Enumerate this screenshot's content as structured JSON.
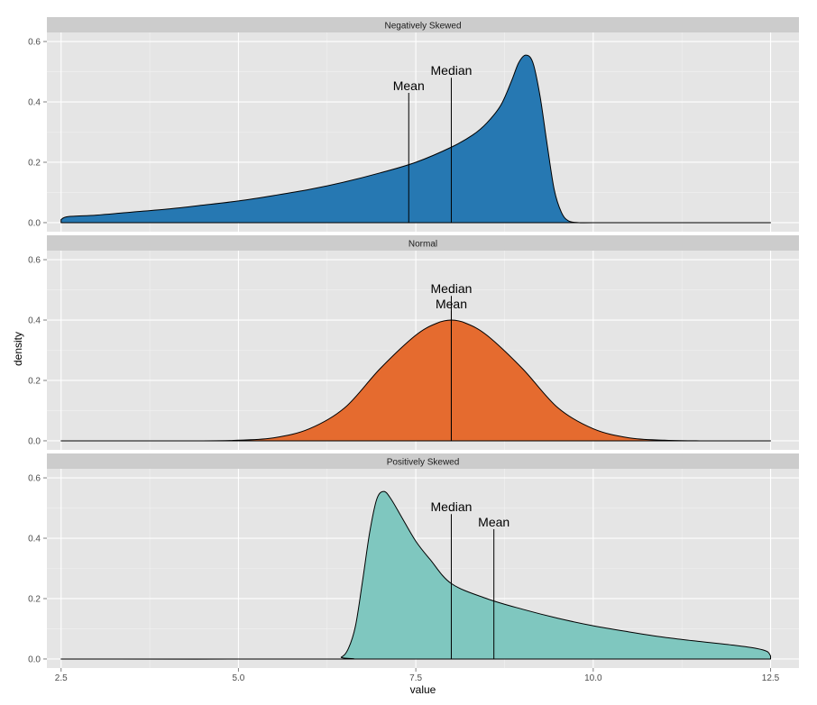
{
  "chart_data": {
    "type": "area",
    "xlabel": "value",
    "ylabel": "density",
    "xlim": [
      2.3,
      12.9
    ],
    "ylim": [
      -0.03,
      0.63
    ],
    "x_ticks": [
      2.5,
      5.0,
      7.5,
      10.0,
      12.5
    ],
    "x_tick_labels": [
      "2.5",
      "5.0",
      "7.5",
      "10.0",
      "12.5"
    ],
    "y_ticks": [
      0.0,
      0.2,
      0.4,
      0.6
    ],
    "y_tick_labels": [
      "0.0",
      "0.2",
      "0.4",
      "0.6"
    ],
    "grid": true,
    "panels": [
      {
        "title": "Negatively Skewed",
        "fill": "#2678b2",
        "series": {
          "x": [
            2.5,
            2.6,
            3.0,
            3.5,
            4.0,
            4.5,
            5.0,
            5.5,
            6.0,
            6.5,
            7.0,
            7.5,
            8.0,
            8.3,
            8.5,
            8.7,
            8.85,
            8.95,
            9.05,
            9.15,
            9.25,
            9.35,
            9.45,
            9.55,
            9.65,
            9.8,
            10.0,
            11.0,
            12.5
          ],
          "y": [
            0.01,
            0.02,
            0.025,
            0.035,
            0.045,
            0.058,
            0.072,
            0.09,
            0.11,
            0.135,
            0.165,
            0.2,
            0.25,
            0.29,
            0.33,
            0.39,
            0.47,
            0.53,
            0.555,
            0.53,
            0.42,
            0.26,
            0.11,
            0.035,
            0.006,
            0.0,
            0.0,
            0.0,
            0.0
          ]
        },
        "annotations": [
          {
            "label": "Mean",
            "x": 7.4,
            "y": 0.43
          },
          {
            "label": "Median",
            "x": 8.0,
            "y": 0.48
          }
        ]
      },
      {
        "title": "Normal",
        "fill": "#e56b2f",
        "series": {
          "x": [
            2.5,
            4.5,
            5.0,
            5.5,
            6.0,
            6.5,
            7.0,
            7.5,
            7.8,
            8.0,
            8.2,
            8.5,
            9.0,
            9.5,
            10.0,
            10.5,
            11.0,
            11.5,
            12.5
          ],
          "y": [
            0.0,
            0.0,
            0.002,
            0.01,
            0.04,
            0.11,
            0.24,
            0.35,
            0.39,
            0.4,
            0.39,
            0.35,
            0.24,
            0.11,
            0.04,
            0.01,
            0.002,
            0.0,
            0.0
          ]
        },
        "annotations": [
          {
            "label": "Median",
            "x": 8.0,
            "y": 0.48
          },
          {
            "label": "Mean",
            "x": 8.0,
            "y": 0.43
          }
        ]
      },
      {
        "title": "Positively Skewed",
        "fill": "#7fc7bf",
        "series": {
          "x": [
            2.5,
            6.3,
            6.45,
            6.55,
            6.65,
            6.75,
            6.85,
            6.95,
            7.05,
            7.15,
            7.3,
            7.5,
            7.7,
            8.0,
            8.5,
            9.0,
            9.5,
            10.0,
            10.5,
            11.0,
            11.5,
            12.0,
            12.3,
            12.45,
            12.5
          ],
          "y": [
            0.0,
            0.0,
            0.006,
            0.035,
            0.11,
            0.26,
            0.42,
            0.53,
            0.555,
            0.53,
            0.47,
            0.39,
            0.33,
            0.25,
            0.2,
            0.165,
            0.135,
            0.11,
            0.09,
            0.072,
            0.058,
            0.045,
            0.035,
            0.025,
            0.01
          ]
        },
        "annotations": [
          {
            "label": "Median",
            "x": 8.0,
            "y": 0.48
          },
          {
            "label": "Mean",
            "x": 8.6,
            "y": 0.43
          }
        ]
      }
    ]
  }
}
